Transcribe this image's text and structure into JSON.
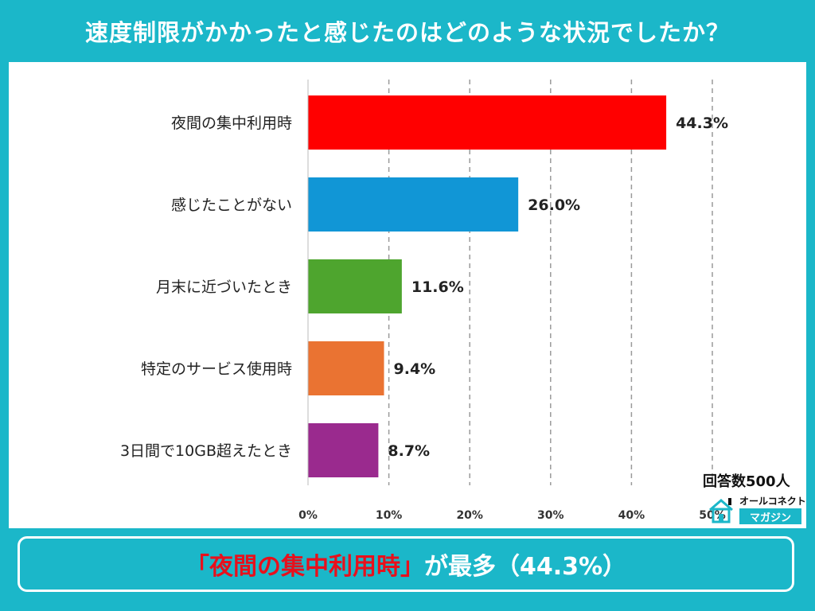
{
  "title": "速度制限がかかったと感じたのはどのような状況でしたか？",
  "respondents": "回答数500人",
  "logo": {
    "name_top": "オールコネクト",
    "name_bottom": "マガジン",
    "icon": "house-logo-icon"
  },
  "footer": {
    "highlight": "「夜間の集中利用時」",
    "rest": "が最多（44.3%）"
  },
  "colors": {
    "background": "#1bb7c9",
    "highlight": "#e8101c"
  },
  "chart_data": {
    "type": "bar",
    "orientation": "horizontal",
    "categories": [
      "夜間の集中利用時",
      "感じたことがない",
      "月末に近づいたとき",
      "特定のサービス使用時",
      "3日間で10GB超えたとき"
    ],
    "values": [
      44.3,
      26.0,
      11.6,
      9.4,
      8.7
    ],
    "value_labels": [
      "44.3%",
      "26.0%",
      "11.6%",
      "9.4%",
      "8.7%"
    ],
    "colors": [
      "#ff0000",
      "#1196d6",
      "#4ea52e",
      "#ea7332",
      "#9a2a8e"
    ],
    "xlim": [
      0,
      50
    ],
    "xticks": [
      "0%",
      "10%",
      "20%",
      "30%",
      "40%",
      "50%"
    ],
    "grid": "vertical dashed"
  }
}
